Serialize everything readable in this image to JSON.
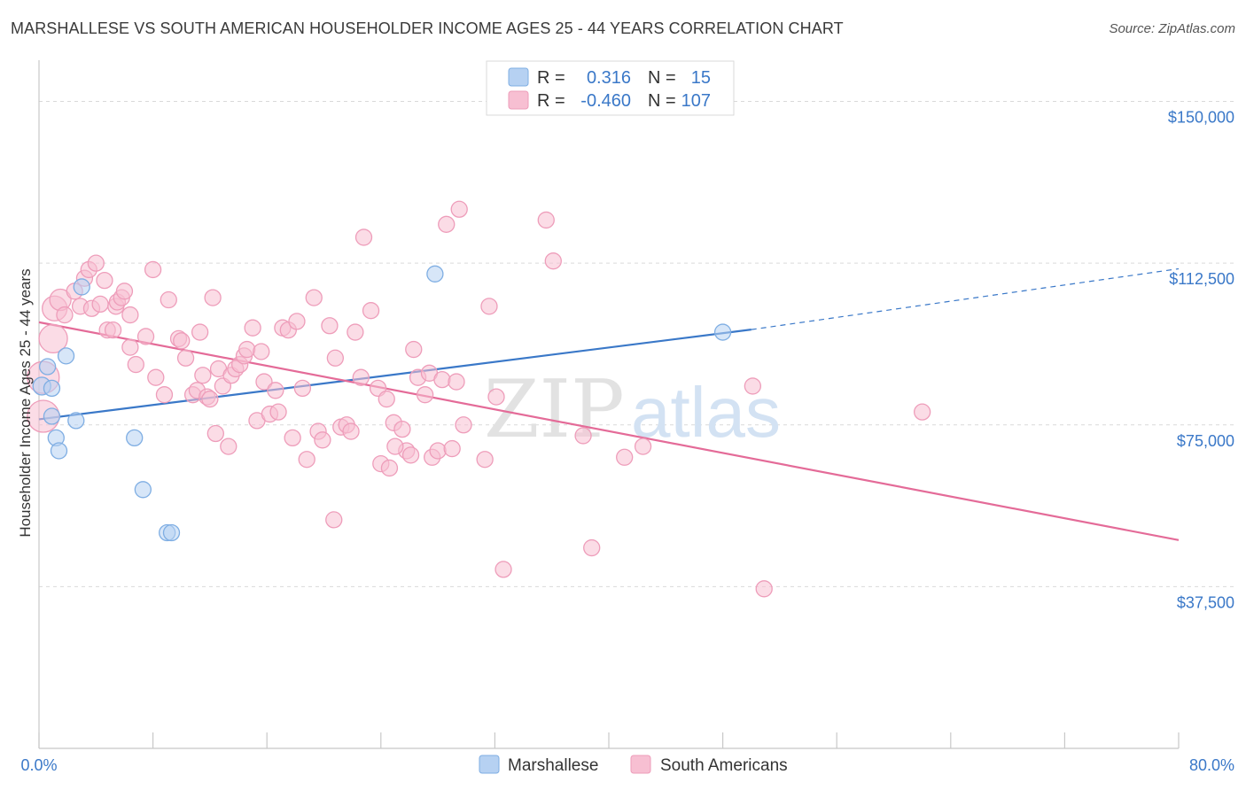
{
  "title": "MARSHALLESE VS SOUTH AMERICAN HOUSEHOLDER INCOME AGES 25 - 44 YEARS CORRELATION CHART",
  "source": "Source: ZipAtlas.com",
  "watermark": {
    "zip": "ZIP",
    "atlas": "atlas"
  },
  "colors": {
    "blue": "#3a78c8",
    "blue_fill": "#b6d1f2",
    "blue_stroke": "#7faee3",
    "pink": "#e46b98",
    "pink_fill": "#f7bfd2",
    "pink_stroke": "#ee9dba",
    "axis_label": "#3a78c8",
    "grid": "#d9d9d9"
  },
  "legend_top": {
    "rows": [
      {
        "r_label": "R =",
        "r_value": "0.316",
        "n_label": "N =",
        "n_value": "15"
      },
      {
        "r_label": "R =",
        "r_value": "-0.460",
        "n_label": "N =",
        "n_value": "107"
      }
    ]
  },
  "legend_bottom": {
    "items": [
      "Marshallese",
      "South Americans"
    ]
  },
  "chart_data": {
    "type": "scatter",
    "xlabel": "",
    "ylabel": "Householder Income Ages 25 - 44 years",
    "xlim": [
      0,
      80
    ],
    "ylim": [
      0,
      157500
    ],
    "x_tick_labels": [
      "0.0%",
      "80.0%"
    ],
    "y_ticks": [
      37500,
      75000,
      112500,
      150000
    ],
    "y_tick_labels": [
      "$37,500",
      "$75,000",
      "$112,500",
      "$150,000"
    ],
    "grid": true,
    "series": [
      {
        "name": "Marshallese",
        "color": "#3a78c8",
        "points": [
          [
            0.2,
            84000,
            10
          ],
          [
            0.6,
            88500,
            9
          ],
          [
            0.9,
            83500,
            9
          ],
          [
            0.9,
            77000,
            9
          ],
          [
            1.2,
            72000,
            9
          ],
          [
            1.4,
            69000,
            9
          ],
          [
            1.9,
            91000,
            9
          ],
          [
            2.6,
            76000,
            9
          ],
          [
            3.0,
            107000,
            9
          ],
          [
            6.7,
            72000,
            9
          ],
          [
            7.3,
            60000,
            9
          ],
          [
            9.0,
            50000,
            9
          ],
          [
            9.3,
            50000,
            9
          ],
          [
            27.8,
            110000,
            9
          ],
          [
            48.0,
            96500,
            9
          ]
        ],
        "trend": {
          "x": [
            0,
            50
          ],
          "y": [
            76300,
            97100
          ]
        },
        "trend_dashed": {
          "x": [
            50,
            80
          ],
          "y": [
            97100,
            111200
          ]
        }
      },
      {
        "name": "South Americans",
        "color": "#e46b98",
        "points": [
          [
            0.3,
            77000,
            18
          ],
          [
            0.3,
            86000,
            18
          ],
          [
            1.0,
            95000,
            16
          ],
          [
            1.1,
            102000,
            14
          ],
          [
            1.5,
            104000,
            12
          ],
          [
            1.8,
            100500,
            9
          ],
          [
            2.5,
            106000,
            9
          ],
          [
            2.9,
            102500,
            9
          ],
          [
            3.2,
            109000,
            9
          ],
          [
            3.5,
            111000,
            9
          ],
          [
            3.7,
            102000,
            9
          ],
          [
            4.0,
            112500,
            9
          ],
          [
            4.3,
            103000,
            9
          ],
          [
            4.6,
            108500,
            9
          ],
          [
            4.8,
            97000,
            9
          ],
          [
            5.2,
            97000,
            9
          ],
          [
            5.4,
            102500,
            9
          ],
          [
            5.5,
            103500,
            9
          ],
          [
            5.8,
            104500,
            9
          ],
          [
            6.0,
            106000,
            9
          ],
          [
            6.4,
            100500,
            9
          ],
          [
            6.4,
            93000,
            9
          ],
          [
            6.8,
            89000,
            9
          ],
          [
            7.5,
            95500,
            9
          ],
          [
            8.0,
            111000,
            9
          ],
          [
            8.2,
            86000,
            9
          ],
          [
            8.8,
            82000,
            9
          ],
          [
            9.1,
            104000,
            9
          ],
          [
            9.8,
            95000,
            9
          ],
          [
            10.0,
            94500,
            9
          ],
          [
            10.3,
            90500,
            9
          ],
          [
            10.8,
            82000,
            9
          ],
          [
            11.1,
            83000,
            9
          ],
          [
            11.3,
            96500,
            9
          ],
          [
            11.5,
            86500,
            9
          ],
          [
            11.8,
            81500,
            9
          ],
          [
            12.0,
            81000,
            9
          ],
          [
            12.2,
            104500,
            9
          ],
          [
            12.4,
            73000,
            9
          ],
          [
            12.6,
            88000,
            9
          ],
          [
            12.9,
            84000,
            9
          ],
          [
            13.3,
            70000,
            9
          ],
          [
            13.5,
            86500,
            9
          ],
          [
            13.8,
            88000,
            9
          ],
          [
            14.1,
            89000,
            9
          ],
          [
            14.4,
            91000,
            9
          ],
          [
            14.6,
            92500,
            9
          ],
          [
            15.0,
            97500,
            9
          ],
          [
            15.3,
            76000,
            9
          ],
          [
            15.6,
            92000,
            9
          ],
          [
            15.8,
            85000,
            9
          ],
          [
            16.2,
            77500,
            9
          ],
          [
            16.6,
            83000,
            9
          ],
          [
            16.8,
            78000,
            9
          ],
          [
            17.1,
            97500,
            9
          ],
          [
            17.5,
            97000,
            9
          ],
          [
            17.8,
            72000,
            9
          ],
          [
            18.1,
            99000,
            9
          ],
          [
            18.5,
            83500,
            9
          ],
          [
            18.8,
            67000,
            9
          ],
          [
            19.3,
            104500,
            9
          ],
          [
            19.6,
            73500,
            9
          ],
          [
            19.9,
            71500,
            9
          ],
          [
            20.4,
            98000,
            9
          ],
          [
            20.7,
            53000,
            9
          ],
          [
            20.8,
            90500,
            9
          ],
          [
            21.2,
            74500,
            9
          ],
          [
            21.6,
            75000,
            9
          ],
          [
            21.9,
            73500,
            9
          ],
          [
            22.2,
            96500,
            9
          ],
          [
            22.6,
            86000,
            9
          ],
          [
            22.8,
            118500,
            9
          ],
          [
            23.3,
            101500,
            9
          ],
          [
            23.8,
            83500,
            9
          ],
          [
            24.0,
            66000,
            9
          ],
          [
            24.4,
            81000,
            9
          ],
          [
            24.6,
            65000,
            9
          ],
          [
            24.9,
            75500,
            9
          ],
          [
            25.5,
            74000,
            9
          ],
          [
            25.8,
            69000,
            9
          ],
          [
            26.1,
            68000,
            9
          ],
          [
            26.3,
            92500,
            9
          ],
          [
            26.6,
            86000,
            9
          ],
          [
            27.1,
            82000,
            9
          ],
          [
            27.4,
            87000,
            9
          ],
          [
            27.6,
            67500,
            9
          ],
          [
            28.0,
            69000,
            9
          ],
          [
            28.3,
            85500,
            9
          ],
          [
            28.6,
            121500,
            9
          ],
          [
            29.0,
            69500,
            9
          ],
          [
            29.3,
            85000,
            9
          ],
          [
            29.5,
            125000,
            9
          ],
          [
            29.8,
            75000,
            9
          ],
          [
            31.3,
            67000,
            9
          ],
          [
            31.6,
            102500,
            9
          ],
          [
            32.1,
            81500,
            9
          ],
          [
            32.6,
            41500,
            9
          ],
          [
            35.6,
            122500,
            9
          ],
          [
            36.1,
            113000,
            9
          ],
          [
            38.2,
            72500,
            9
          ],
          [
            38.8,
            46500,
            9
          ],
          [
            41.1,
            67500,
            9
          ],
          [
            42.4,
            70000,
            9
          ],
          [
            50.1,
            84000,
            9
          ],
          [
            50.9,
            37000,
            9
          ],
          [
            62.0,
            78000,
            9
          ],
          [
            25.0,
            70000,
            9
          ]
        ],
        "trend": {
          "x": [
            0,
            80
          ],
          "y": [
            98800,
            48300
          ]
        }
      }
    ]
  }
}
